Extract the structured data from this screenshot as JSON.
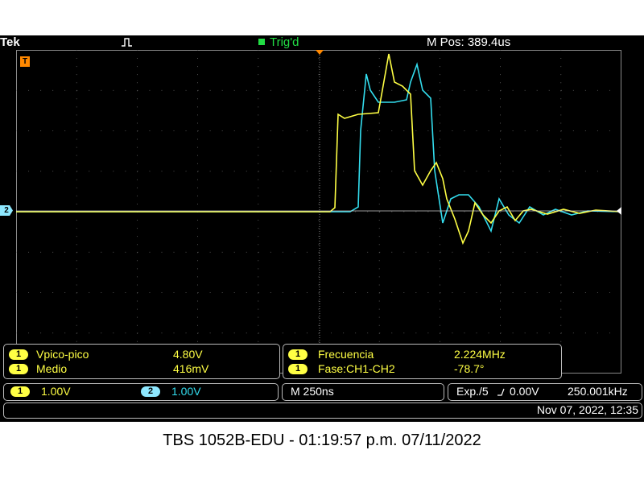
{
  "topbar": {
    "brand": "Tek",
    "acquire_icon": "run-square-wave-icon",
    "trigger_icon": "trigger-status-square-icon",
    "trigger_state": "Trig'd",
    "horizontal_position": "M Pos: 389.4us"
  },
  "markers": {
    "trigger_marker_label": "T",
    "channel2_marker_label": "2"
  },
  "colors": {
    "ch1": "#ffff44",
    "ch2": "#33ddee",
    "trigger": "#ff8800",
    "graticule": "#aaaaaa",
    "background": "#000000"
  },
  "measure_left": {
    "rows": [
      {
        "channel": "1",
        "label": "Vpico-pico",
        "value": "4.80V"
      },
      {
        "channel": "1",
        "label": "Medio",
        "value": "416mV"
      }
    ]
  },
  "measure_right": {
    "rows": [
      {
        "channel": "1",
        "label": "Frecuencia",
        "value": "2.224MHz"
      },
      {
        "channel": "1",
        "label": "Fase:CH1-CH2",
        "value": "-78.7°"
      }
    ]
  },
  "settings": {
    "ch1_badge": "1",
    "ch1_scale": "1.00V",
    "ch2_badge": "2",
    "ch2_scale": "1.00V",
    "timebase": "M 250ns",
    "trigger_source": "Exp./5",
    "trigger_slope_icon": "rising-edge-icon",
    "trigger_level": "0.00V",
    "trigger_frequency": "250.001kHz"
  },
  "datetime": "Nov 07, 2022, 12:35",
  "caption": "TBS 1052B-EDU - 01:19:57 p.m.   07/11/2022"
}
